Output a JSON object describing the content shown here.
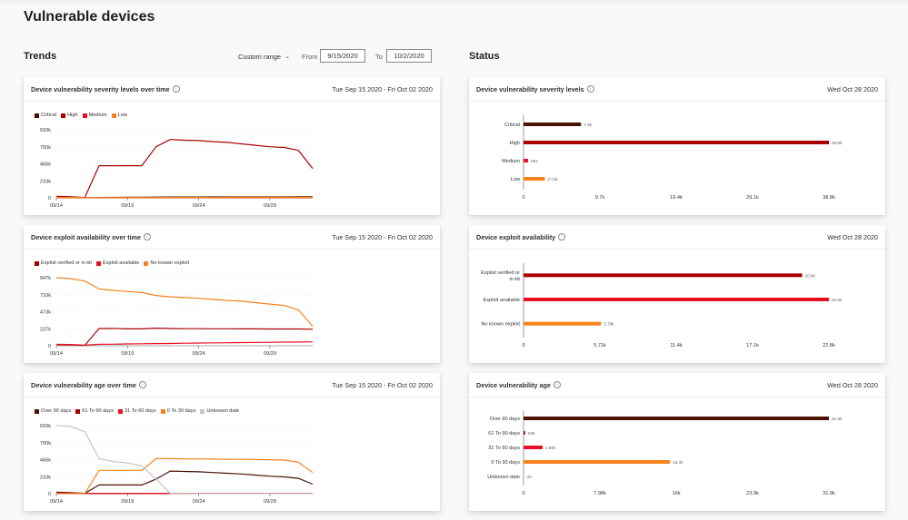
{
  "page": {
    "title": "Vulnerable devices"
  },
  "trends": {
    "title": "Trends",
    "range_select": "Custom range",
    "from_label": "From",
    "from_value": "9/15/2020",
    "to_label": "To",
    "to_value": "10/2/2020"
  },
  "status": {
    "title": "Status"
  },
  "colors": {
    "critical": "#4a1205",
    "high": "#a80000",
    "medium": "#e81123",
    "low": "#f7821b",
    "unknown": "#c8c6c4",
    "grid": "#edebe9"
  },
  "trend_cards": [
    {
      "title": "Device vulnerability severity levels over time",
      "date_range": "Tue Sep 15 2020 - Fri Oct 02 2020",
      "legend": [
        "Critical",
        "High",
        "Medium",
        "Low"
      ],
      "chart_data": {
        "type": "line",
        "x": [
          "09/14",
          "09/15",
          "09/16",
          "09/17",
          "09/18",
          "09/19",
          "09/20",
          "09/21",
          "09/22",
          "09/23",
          "09/24",
          "09/25",
          "09/26",
          "09/27",
          "09/28",
          "09/29",
          "09/30",
          "10/01",
          "10/02"
        ],
        "x_ticks": [
          "09/14",
          "09/19",
          "09/24",
          "09/29"
        ],
        "y_ticks": [
          "0",
          "233k",
          "466k",
          "700k",
          "933k"
        ],
        "ylim": [
          0,
          933000
        ],
        "series": [
          {
            "name": "Critical",
            "color_key": "critical",
            "values": [
              12000,
              8000,
              3000,
              5000,
              6000,
              8000,
              9000,
              10000,
              11000,
              11000,
              11000,
              12000,
              12000,
              12000,
              13000,
              13000,
              13000,
              14000,
              14000
            ]
          },
          {
            "name": "High",
            "color_key": "high",
            "values": [
              20000,
              15000,
              5000,
              440000,
              440000,
              440000,
              440000,
              700000,
              800000,
              790000,
              785000,
              770000,
              760000,
              740000,
              720000,
              700000,
              690000,
              650000,
              400000
            ]
          },
          {
            "name": "Medium",
            "color_key": "medium",
            "values": [
              2000,
              1500,
              800,
              900,
              900,
              1000,
              1000,
              1100,
              1200,
              1200,
              1300,
              1300,
              1300,
              1400,
              1400,
              1400,
              1500,
              1500,
              1500
            ]
          },
          {
            "name": "Low",
            "color_key": "low",
            "values": [
              6000,
              5000,
              2000,
              3000,
              3000,
              4000,
              4000,
              4000,
              5000,
              5000,
              5000,
              5000,
              6000,
              6000,
              6000,
              6000,
              6000,
              6000,
              6000
            ]
          }
        ]
      }
    },
    {
      "title": "Device exploit availability over time",
      "date_range": "Tue Sep 15 2020 - Fri Oct 02 2020",
      "legend": [
        "Exploit verified or in kit",
        "Exploit available",
        "No known exploit"
      ],
      "chart_data": {
        "type": "line",
        "x": [
          "09/14",
          "09/15",
          "09/16",
          "09/17",
          "09/18",
          "09/19",
          "09/20",
          "09/21",
          "09/22",
          "09/23",
          "09/24",
          "09/25",
          "09/26",
          "09/27",
          "09/28",
          "09/29",
          "09/30",
          "10/01",
          "10/02"
        ],
        "x_ticks": [
          "09/14",
          "09/19",
          "09/24",
          "09/29"
        ],
        "y_ticks": [
          "0",
          "237k",
          "473k",
          "710k",
          "947k"
        ],
        "ylim": [
          0,
          947000
        ],
        "series": [
          {
            "name": "Exploit verified or in kit",
            "color_key": "high",
            "values": [
              15000,
              12000,
              5000,
              240000,
              240000,
              235000,
              235000,
              245000,
              240000,
              238000,
              238000,
              236000,
              236000,
              235000,
              235000,
              234000,
              234000,
              233000,
              230000
            ]
          },
          {
            "name": "Exploit available",
            "color_key": "medium",
            "values": [
              20000,
              18000,
              8000,
              20000,
              22000,
              25000,
              28000,
              30000,
              32000,
              35000,
              38000,
              40000,
              42000,
              44000,
              46000,
              48000,
              50000,
              52000,
              54000
            ]
          },
          {
            "name": "No known exploit",
            "color_key": "low",
            "values": [
              947000,
              935000,
              900000,
              790000,
              770000,
              755000,
              740000,
              700000,
              680000,
              670000,
              660000,
              645000,
              630000,
              620000,
              600000,
              580000,
              560000,
              500000,
              270000
            ]
          }
        ]
      }
    },
    {
      "title": "Device vulnerability age over time",
      "date_range": "Tue Sep 15 2020 - Fri Oct 02 2020",
      "legend": [
        "Over 90 days",
        "61 To 90 days",
        "31 To 60 days",
        "0 To 30 days",
        "Unknown date"
      ],
      "chart_data": {
        "type": "line",
        "x": [
          "09/14",
          "09/15",
          "09/16",
          "09/17",
          "09/18",
          "09/19",
          "09/20",
          "09/21",
          "09/22",
          "09/23",
          "09/24",
          "09/25",
          "09/26",
          "09/27",
          "09/28",
          "09/29",
          "09/30",
          "10/01",
          "10/02"
        ],
        "x_ticks": [
          "09/14",
          "09/19",
          "09/24",
          "09/29"
        ],
        "y_ticks": [
          "0",
          "233k",
          "466k",
          "700k",
          "933k"
        ],
        "ylim": [
          0,
          933000
        ],
        "series": [
          {
            "name": "Over 90 days",
            "color_key": "critical",
            "values": [
              20000,
              15000,
              5000,
              120000,
              120000,
              120000,
              120000,
              200000,
              310000,
              305000,
              300000,
              290000,
              280000,
              270000,
              255000,
              240000,
              230000,
              210000,
              130000
            ]
          },
          {
            "name": "61 To 90 days",
            "color_key": "high",
            "values": [
              10000,
              8000,
              3000,
              4000,
              4000,
              4000,
              4000,
              4000,
              4000,
              4000,
              4000,
              4000,
              4000,
              4000,
              4000,
              4000,
              4000,
              4000,
              4000
            ]
          },
          {
            "name": "31 To 60 days",
            "color_key": "medium",
            "values": [
              5000,
              4000,
              2000,
              3000,
              3000,
              3000,
              3000,
              3000,
              3000,
              3000,
              3000,
              3000,
              3000,
              3000,
              3000,
              3000,
              3000,
              3000,
              3000
            ]
          },
          {
            "name": "0 To 30 days",
            "color_key": "low",
            "values": [
              3000,
              3000,
              2000,
              320000,
              320000,
              320000,
              320000,
              480000,
              480000,
              478000,
              476000,
              474000,
              472000,
              470000,
              468000,
              465000,
              460000,
              430000,
              290000
            ]
          },
          {
            "name": "Unknown date",
            "color_key": "unknown",
            "values": [
              933000,
              920000,
              850000,
              480000,
              440000,
              420000,
              380000,
              200000,
              5000,
              2000,
              1000,
              1000,
              1000,
              1000,
              1000,
              1000,
              1000,
              1000,
              1000
            ]
          }
        ]
      }
    }
  ],
  "status_cards": [
    {
      "title": "Device vulnerability severity levels",
      "date": "Wed Oct 28 2020",
      "chart_data": {
        "type": "bar",
        "orientation": "horizontal",
        "categories": [
          "Critical",
          "High",
          "Medium",
          "Low"
        ],
        "values": [
          7300,
          38800,
          591,
          2710
        ],
        "value_labels": [
          "7.3k",
          "38.8k",
          "591",
          "2.71k"
        ],
        "color_keys": [
          "critical",
          "high",
          "medium",
          "low"
        ],
        "x_ticks": [
          "0",
          "9.7k",
          "19.4k",
          "29.1k",
          "38.8k"
        ],
        "xlim": [
          0,
          38800
        ]
      }
    },
    {
      "title": "Device exploit availability",
      "date": "Wed Oct 28 2020",
      "chart_data": {
        "type": "bar",
        "orientation": "horizontal",
        "categories": [
          "Exploit verified or in kit",
          "Exploit available",
          "No known exploit"
        ],
        "values": [
          20800,
          22800,
          5790
        ],
        "value_labels": [
          "20.8k",
          "22.8k",
          "5.79k"
        ],
        "color_keys": [
          "high",
          "medium",
          "low"
        ],
        "x_ticks": [
          "0",
          "5.71k",
          "11.4k",
          "17.1k",
          "22.8k"
        ],
        "xlim": [
          0,
          22800
        ]
      }
    },
    {
      "title": "Device vulnerability age",
      "date": "Wed Oct 28 2020",
      "chart_data": {
        "type": "bar",
        "orientation": "horizontal",
        "categories": [
          "Over 90 days",
          "61 To 90 days",
          "31 To 60 days",
          "0 To 30 days",
          "Unknown date"
        ],
        "values": [
          31900,
          159,
          1990,
          15300,
          20
        ],
        "value_labels": [
          "31.9k",
          "159",
          "1.99k",
          "15.3k",
          "20"
        ],
        "color_keys": [
          "critical",
          "high",
          "medium",
          "low",
          "unknown"
        ],
        "x_ticks": [
          "0",
          "7.98k",
          "16k",
          "23.9k",
          "31.9k"
        ],
        "xlim": [
          0,
          31900
        ]
      }
    }
  ]
}
